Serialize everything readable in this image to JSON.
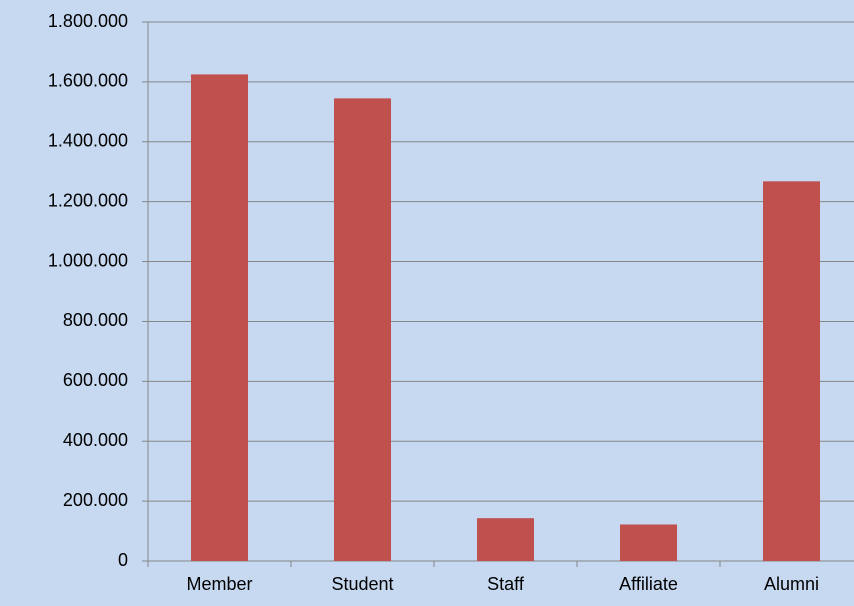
{
  "chart_data": {
    "type": "bar",
    "categories": [
      "Member",
      "Student",
      "Staff",
      "Affiliate",
      "Alumni"
    ],
    "values": [
      1625000,
      1545000,
      143000,
      122000,
      1268000
    ],
    "color": "#c0504d",
    "ylim": [
      0,
      1800000
    ],
    "yticks": [
      0,
      {
        "value": 200000,
        "label": "200.000"
      },
      {
        "value": 400000,
        "label": "400.000"
      },
      {
        "value": 600000,
        "label": "600.000"
      },
      {
        "value": 800000,
        "label": "800.000"
      },
      {
        "value": 1000000,
        "label": "1.000.000"
      },
      {
        "value": 1200000,
        "label": "1.200.000"
      },
      {
        "value": 1400000,
        "label": "1.400.000"
      },
      {
        "value": 1600000,
        "label": "1.600.000"
      },
      {
        "value": 1800000,
        "label": "1.800.000"
      }
    ],
    "grid": true
  }
}
